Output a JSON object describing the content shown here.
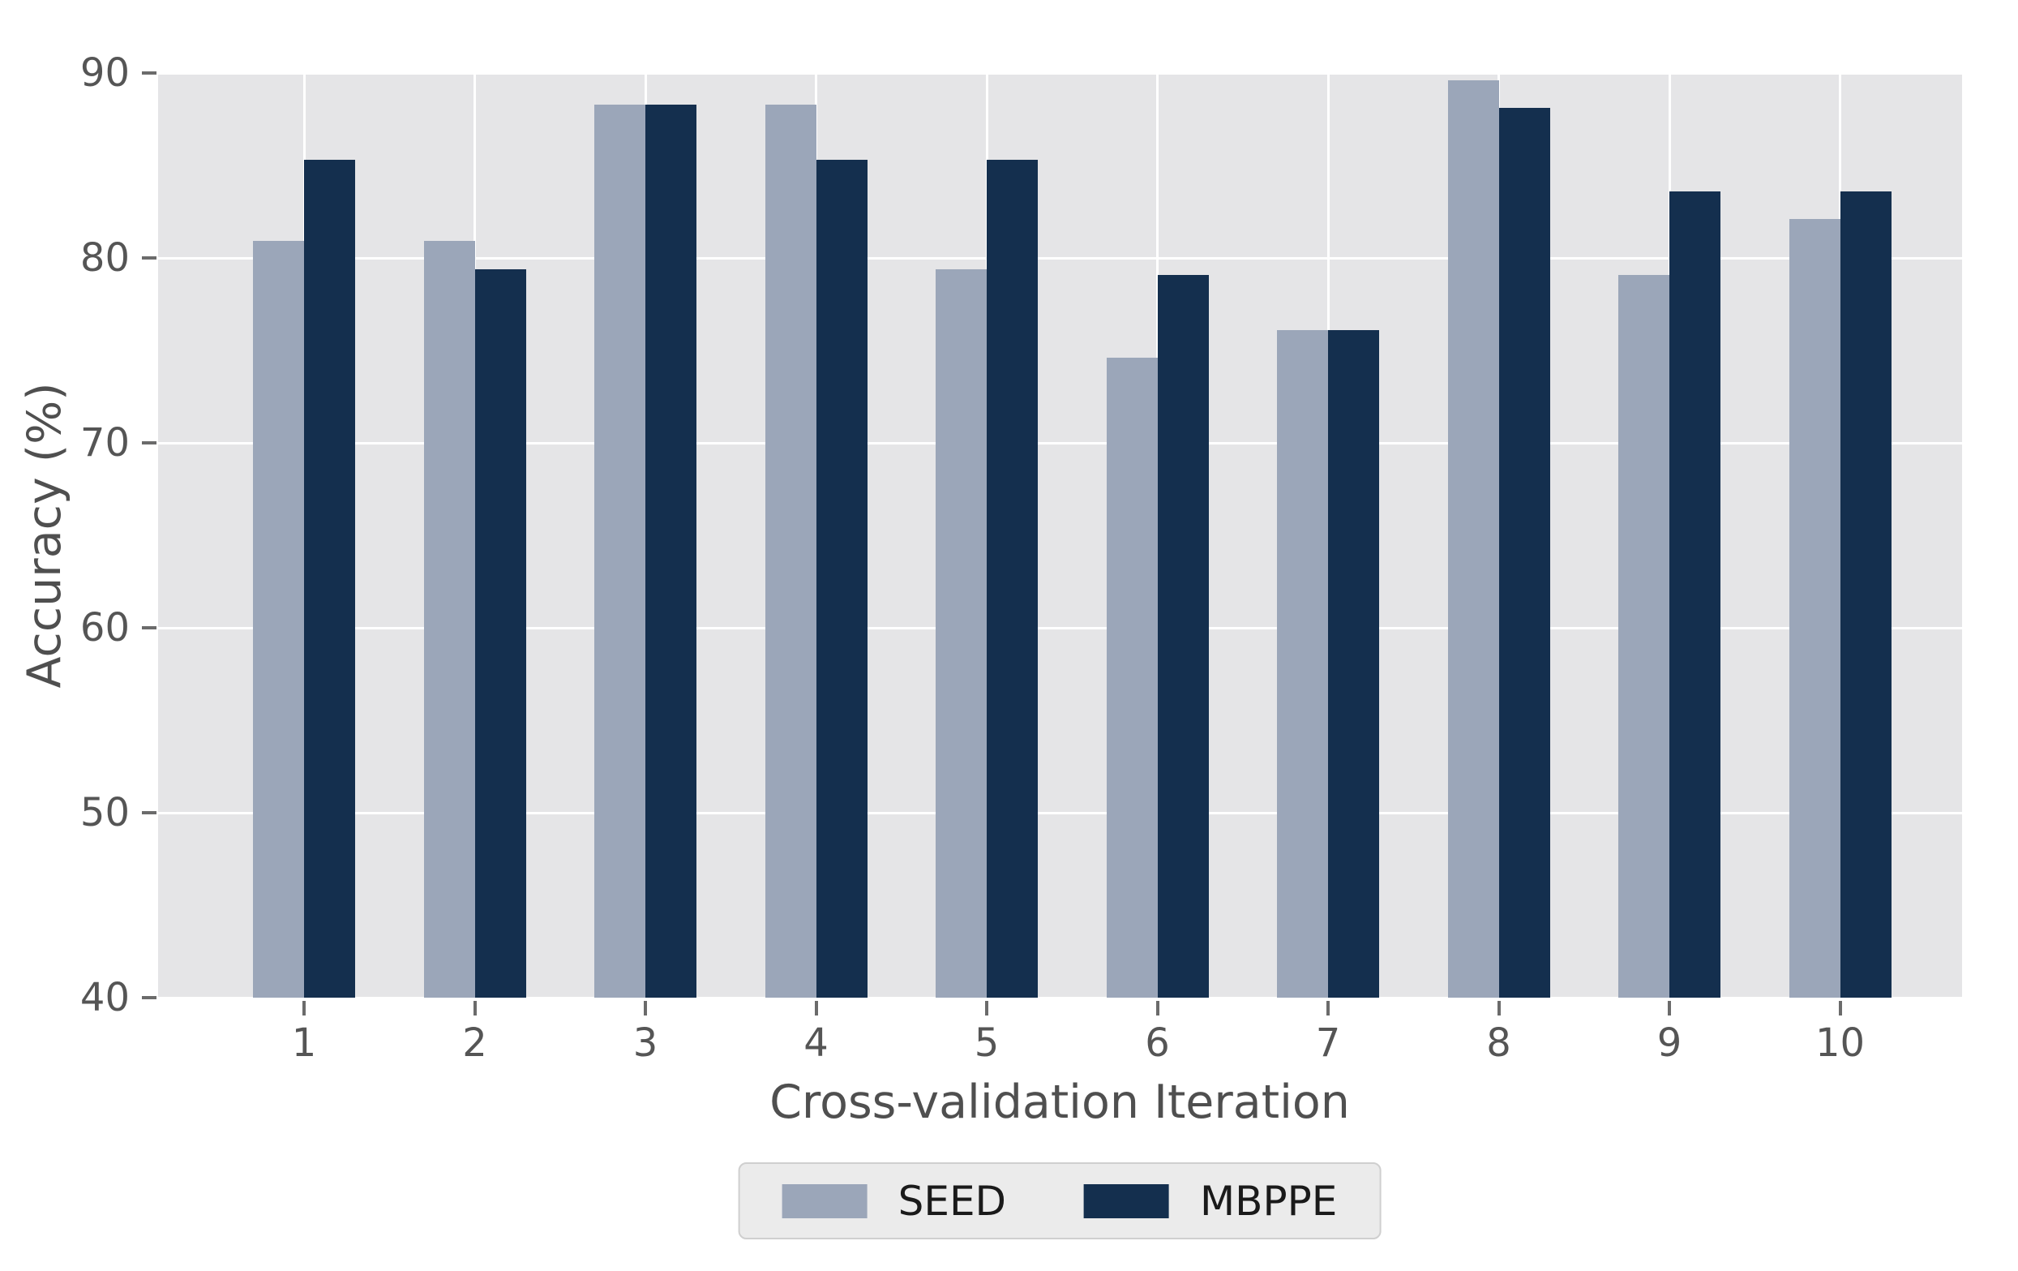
{
  "chart_data": {
    "type": "bar",
    "title": "",
    "categories": [
      "1",
      "2",
      "3",
      "4",
      "5",
      "6",
      "7",
      "8",
      "9",
      "10"
    ],
    "series": [
      {
        "name": "SEED",
        "color": "#9ba6b9",
        "values": [
          80.9,
          80.9,
          88.3,
          88.3,
          79.4,
          74.6,
          76.1,
          89.6,
          79.1,
          82.1
        ]
      },
      {
        "name": "MBPPE",
        "color": "#142f4e",
        "values": [
          85.3,
          79.4,
          88.3,
          85.3,
          85.3,
          79.1,
          76.1,
          88.1,
          83.6,
          83.6
        ]
      }
    ],
    "xlabel": "Cross-validation Iteration",
    "ylabel": "Accuracy (%)",
    "ylim": [
      40,
      90
    ],
    "yticks": [
      40,
      50,
      60,
      70,
      80,
      90
    ],
    "grid": true,
    "grid_color": "#ffffff",
    "plot_background": "#e5e5e7",
    "figure_background": "#ffffff",
    "legend_position": "bottom-center",
    "bar_layout": "grouped"
  },
  "legend": {
    "items": [
      {
        "label": "SEED",
        "color": "#9ba6b9"
      },
      {
        "label": "MBPPE",
        "color": "#142f4e"
      }
    ]
  }
}
